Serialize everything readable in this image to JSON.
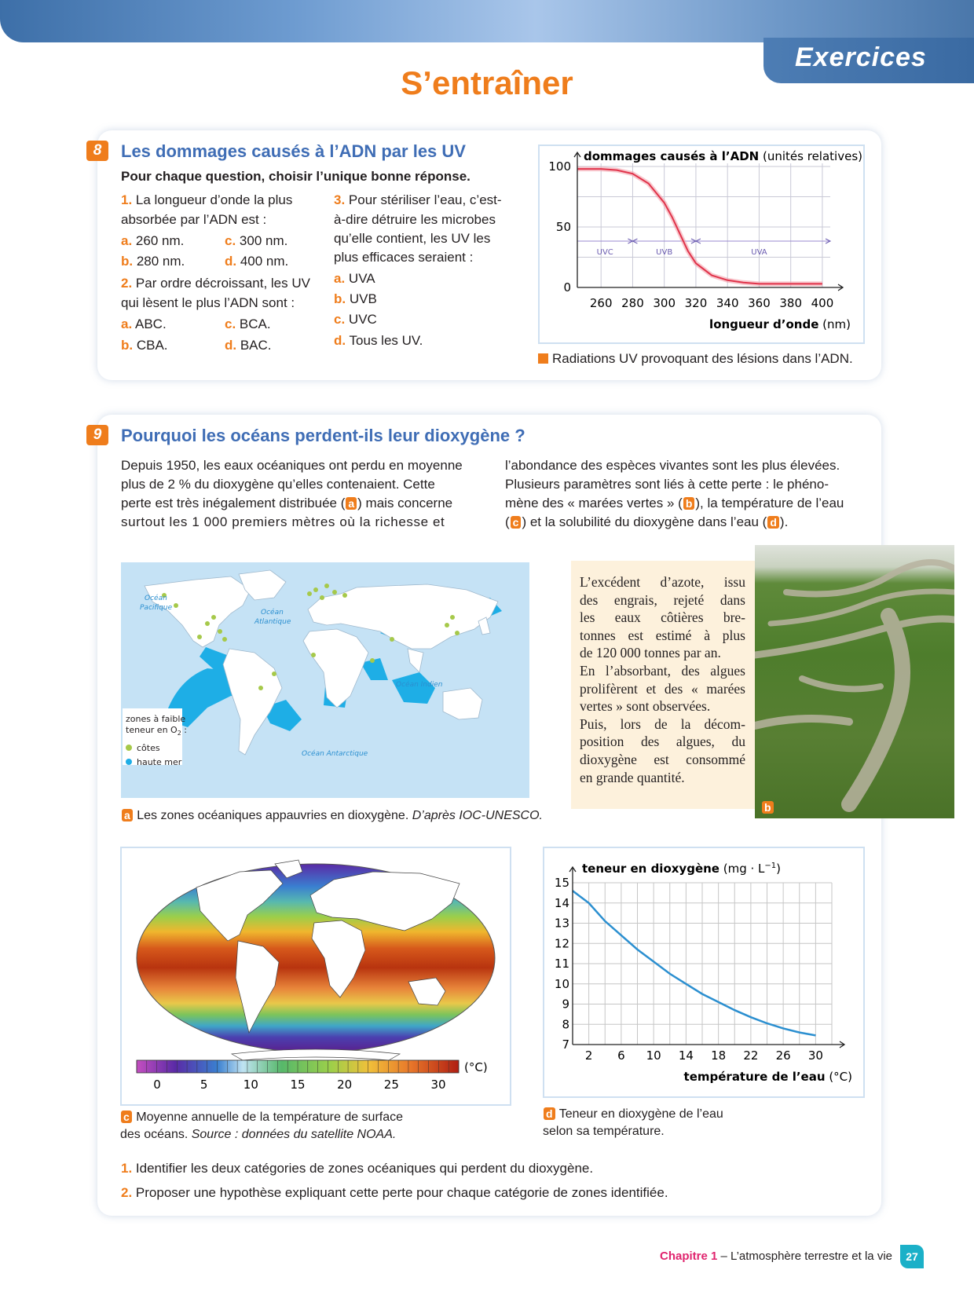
{
  "header": {
    "tab_label": "Exercices",
    "title": "S’entraîner"
  },
  "ex8": {
    "number": "8",
    "title": "Les dommages causés à l’ADN par les UV",
    "instruction": "Pour chaque question, choisir l’unique bonne réponse.",
    "q1": {
      "num": "1.",
      "text1": "La longueur d’onde la plus",
      "text2": "absorbée par l’ADN est :",
      "a": "260 nm.",
      "b": "280 nm.",
      "c": "300 nm.",
      "d": "400 nm."
    },
    "q2": {
      "num": "2.",
      "text1": "Par ordre décroissant, les UV",
      "text2": "qui lèsent le plus l’ADN sont :",
      "a": "ABC.",
      "b": "CBA.",
      "c": "BCA.",
      "d": "BAC."
    },
    "q3": {
      "num": "3.",
      "text1": "Pour stériliser l’eau, c’est-",
      "text2": "à-dire détruire les microbes",
      "text3": "qu’elle contient, les UV les",
      "text4": "plus efficaces seraient :",
      "a": "UVA",
      "b": "UVB",
      "c": "UVC",
      "d": "Tous les UV."
    },
    "letters": {
      "a": "a.",
      "b": "b.",
      "c": "c.",
      "d": "d."
    },
    "caption": "Radiations UV provoquant des lésions dans l’ADN."
  },
  "ex9": {
    "number": "9",
    "title": "Pourquoi les océans perdent-ils leur dioxygène ?",
    "para_l1": "Depuis 1950, les eaux océaniques ont perdu en moyenne",
    "para_l2": "plus de 2 % du dioxygène qu’elles contenaient. Cette",
    "para_l3a": "perte est très inégalement distribuée (",
    "para_l3b": ") mais concerne",
    "para_l4": "surtout les 1 000 premiers mètres où la richesse et",
    "para_r1": "l’abondance des espèces vivantes sont les plus élevées.",
    "para_r2": "Plusieurs paramètres sont liés à cette perte : le phéno-",
    "para_r3a": "mène des « marées vertes » (",
    "para_r3b": "), la température de l’eau",
    "para_r4a": "(",
    "para_r4b": ") et la solubilité du dioxygène dans l’eau (",
    "para_r4c": ").",
    "doc_a": {
      "letter": "a",
      "caption": "Les zones océaniques appauvries en dioxygène.",
      "source": "D’après IOC-UNESCO.",
      "ocean_pacific": [
        "Océan",
        "Pacifique"
      ],
      "ocean_atlantic": [
        "Océan",
        "Atlantique"
      ],
      "ocean_indian": "Océan Indien",
      "ocean_antarctic": "Océan Antarctique",
      "legend_title1": "zones à faible",
      "legend_title2": "teneur en O",
      "legend_title2_sub": "2",
      "legend_title2_end": " :",
      "legend_coast": "côtes",
      "legend_sea": "haute mer",
      "coast_color": "#a6c94a",
      "sea_color": "#1eaee6"
    },
    "doc_b": {
      "letter": "b",
      "lines": [
        "L’excédent d’azote, issu",
        "des engrais, rejeté dans",
        "les eaux côtières bre-",
        "tonnes est estimé à plus",
        "de 120 000 tonnes par an.",
        "En l’absorbant, des algues",
        "prolifèrent et des « marées",
        "vertes » sont observées.",
        "Puis, lors de la décom-",
        "position des algues, du",
        "dioxygène est consommé",
        "en grande quantité."
      ]
    },
    "doc_c": {
      "letter": "c",
      "caption1": "Moyenne annuelle de la température de surface",
      "caption2a": "des océans. ",
      "caption2b": "Source : données du satellite NOAA.",
      "scale_unit": "(°C)",
      "scale_ticks": [
        "0",
        "5",
        "10",
        "15",
        "20",
        "25",
        "30"
      ]
    },
    "doc_d": {
      "letter": "d",
      "caption1": "Teneur en dioxygène de l’eau",
      "caption2": "selon sa température."
    },
    "questions": [
      {
        "num": "1.",
        "text": "Identifier les deux catégories de zones océaniques qui perdent du dioxygène."
      },
      {
        "num": "2.",
        "text": "Proposer une hypothèse expliquant cette perte pour chaque catégorie de zones identifiée."
      }
    ]
  },
  "footer": {
    "chapter": "Chapitre 1",
    "title": " – L’atmosphère terrestre et la vie",
    "page": "27"
  },
  "chart_data": [
    {
      "type": "line",
      "ylabel_bold": "dommages causés à l’ADN",
      "ylabel_unit": "(unités relatives)",
      "xlabel_bold": "longueur d’onde",
      "xlabel_unit": "(nm)",
      "x_ticks": [
        "260",
        "280",
        "300",
        "320",
        "340",
        "360",
        "380",
        "400"
      ],
      "y_ticks": [
        "100",
        "50",
        "0"
      ],
      "xlim": [
        245,
        405
      ],
      "ylim": [
        0,
        100
      ],
      "bands": [
        {
          "name": "UVC",
          "from": 245,
          "to": 280
        },
        {
          "name": "UVB",
          "from": 280,
          "to": 320
        },
        {
          "name": "UVA",
          "from": 320,
          "to": 400
        }
      ],
      "x": [
        245,
        260,
        270,
        280,
        290,
        300,
        305,
        310,
        315,
        320,
        330,
        340,
        350,
        360,
        380,
        400
      ],
      "y": [
        98,
        98,
        97,
        94,
        86,
        70,
        58,
        44,
        30,
        20,
        10,
        6,
        4,
        3,
        3,
        3
      ],
      "line_color": "#e0334a"
    },
    {
      "type": "line",
      "ylabel_bold": "teneur en dioxygène",
      "ylabel_unit": "(mg · L",
      "ylabel_sup": "−1",
      "ylabel_end": ")",
      "xlabel_bold": "température de l’eau",
      "xlabel_unit": "(°C)",
      "x_ticks": [
        "2",
        "6",
        "10",
        "14",
        "18",
        "22",
        "26",
        "30"
      ],
      "y_ticks": [
        "15",
        "14",
        "13",
        "12",
        "11",
        "10",
        "9",
        "8",
        "7"
      ],
      "xlim": [
        0,
        32
      ],
      "ylim": [
        7,
        15
      ],
      "x": [
        0,
        2,
        4,
        6,
        8,
        10,
        12,
        14,
        16,
        18,
        20,
        22,
        24,
        26,
        28,
        30
      ],
      "y": [
        14.6,
        14.0,
        13.1,
        12.4,
        11.7,
        11.1,
        10.5,
        10.0,
        9.5,
        9.1,
        8.7,
        8.35,
        8.05,
        7.8,
        7.6,
        7.45
      ],
      "line_color": "#2b8fd0"
    }
  ]
}
